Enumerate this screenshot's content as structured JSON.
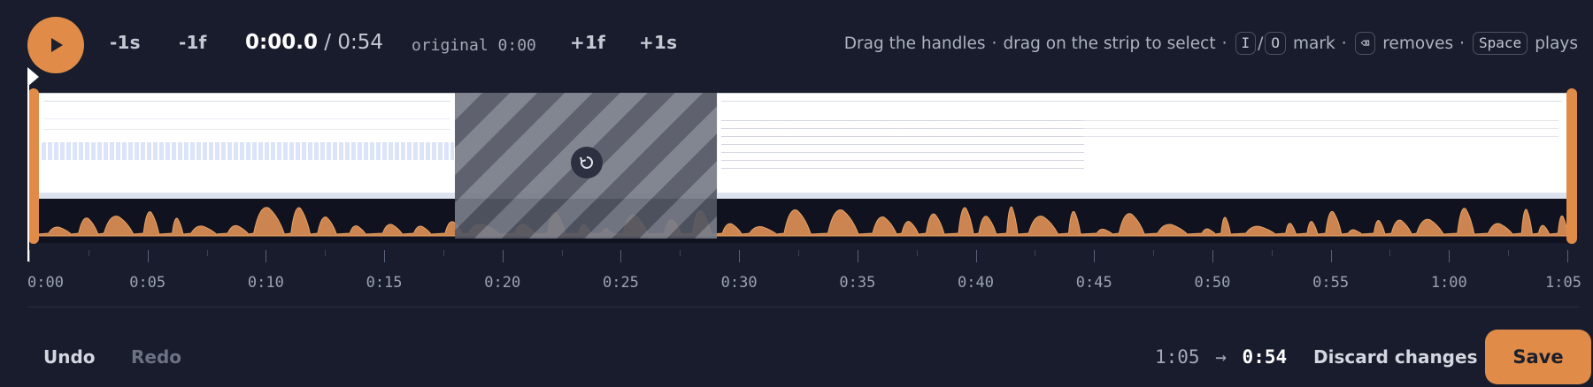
{
  "colors": {
    "background": "#181c2c",
    "accent": "#e08c48",
    "text": "#e6e8ee",
    "muted": "#a3a8b6"
  },
  "transport": {
    "play_icon": "play-icon",
    "minus_second": "-1s",
    "minus_frame": "-1f",
    "plus_frame": "+1f",
    "plus_second": "+1s"
  },
  "timecode": {
    "current": "0:00.0",
    "separator": "/",
    "duration": "0:54",
    "original": "original 0:00"
  },
  "hint": {
    "text1": "Drag the handles",
    "dot": "·",
    "text2": "drag on the strip to select",
    "key_in": "I",
    "slash": "/",
    "key_out": "O",
    "text3": "mark",
    "key_delete": "⌫",
    "text4": "removes",
    "key_space": "Space",
    "text5": "plays"
  },
  "timeline": {
    "total_seconds": 65,
    "removed_range_seconds": [
      17.5,
      28.5
    ],
    "restore_icon": "restore-icon",
    "ticks": [
      "0:00",
      "0:05",
      "0:10",
      "0:15",
      "0:20",
      "0:25",
      "0:30",
      "0:35",
      "0:40",
      "0:45",
      "0:50",
      "0:55",
      "1:00",
      "1:05"
    ]
  },
  "footer": {
    "undo": "Undo",
    "redo": "Redo",
    "length_before": "1:05",
    "arrow": "→",
    "length_after": "0:54",
    "discard": "Discard changes",
    "save": "Save"
  }
}
